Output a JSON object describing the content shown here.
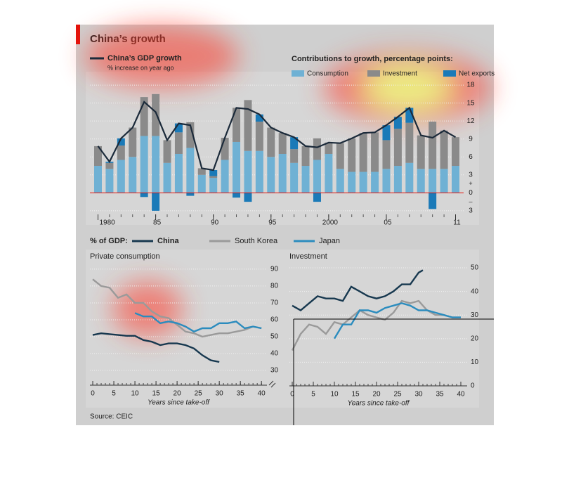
{
  "title": "China’s growth",
  "source": "Source: CEIC",
  "legend": {
    "title": "% of GDP:",
    "series": [
      {
        "name": "China",
        "color": "#17384f"
      },
      {
        "name": "South Korea",
        "color": "#9a9a9a"
      },
      {
        "name": "Japan",
        "color": "#2b8cbe"
      }
    ]
  },
  "chart_data": [
    {
      "type": "bar",
      "stacked": true,
      "legend_title": "Contributions to growth, percentage points:",
      "x": [
        1980,
        1981,
        1982,
        1983,
        1984,
        1985,
        1986,
        1987,
        1988,
        1989,
        1990,
        1991,
        1992,
        1993,
        1994,
        1995,
        1996,
        1997,
        1998,
        1999,
        2000,
        2001,
        2002,
        2003,
        2004,
        2005,
        2006,
        2007,
        2008,
        2009,
        2010,
        2011
      ],
      "xlim": [
        1979.3,
        2011.7
      ],
      "xticks": [
        1980,
        {
          "value": 1985,
          "label": "85"
        },
        {
          "value": 1990,
          "label": "90"
        },
        {
          "value": 1995,
          "label": "95"
        },
        2000,
        {
          "value": 2005,
          "label": "05"
        },
        {
          "value": 2011,
          "label": "11"
        }
      ],
      "ylim": [
        -3.6,
        19.3
      ],
      "yticks": [
        {
          "value": -3,
          "label": "3"
        },
        0,
        3,
        6,
        9,
        12,
        15,
        18
      ],
      "sign_labels": [
        "+",
        "–"
      ],
      "grid": true,
      "series": [
        {
          "name": "Consumption",
          "color": "#6fb1d4",
          "values": [
            4.5,
            4.0,
            5.5,
            6.0,
            9.5,
            9.5,
            5.0,
            6.5,
            7.5,
            3.0,
            2.5,
            5.5,
            8.5,
            7.0,
            7.0,
            6.0,
            6.5,
            5.0,
            4.5,
            5.5,
            6.5,
            4.0,
            3.5,
            3.5,
            3.5,
            4.0,
            4.5,
            5.0,
            4.0,
            4.0,
            4.0,
            4.5
          ]
        },
        {
          "name": "Investment",
          "color": "#8a8a8a",
          "values": [
            3.3,
            1.0,
            2.4,
            4.9,
            6.5,
            7.0,
            3.8,
            3.6,
            4.3,
            1.1,
            0.3,
            3.7,
            5.7,
            8.5,
            4.9,
            4.9,
            3.5,
            2.3,
            3.3,
            3.6,
            1.9,
            4.3,
            5.6,
            6.5,
            6.6,
            4.8,
            6.2,
            6.7,
            5.6,
            7.9,
            6.4,
            4.8
          ]
        },
        {
          "name": "Net exports",
          "color": "#1a7ab8",
          "values": [
            0,
            0.2,
            1.2,
            0,
            -0.7,
            -3.0,
            0,
            1.5,
            -0.5,
            0,
            1.0,
            0,
            -0.8,
            -1.5,
            1.2,
            0,
            0,
            2.0,
            0,
            -1.5,
            0,
            0,
            0,
            0,
            0,
            2.5,
            2.0,
            2.5,
            0,
            -2.7,
            0,
            0
          ]
        },
        {
          "name": "China’s GDP growth",
          "subtitle": "% increase on year ago",
          "type": "line",
          "color": "#1b2a3a",
          "values": [
            7.8,
            5.2,
            9.1,
            10.9,
            15.2,
            13.5,
            8.8,
            11.6,
            11.3,
            4.1,
            3.8,
            9.2,
            14.2,
            14.0,
            13.1,
            10.9,
            10.0,
            9.3,
            7.8,
            7.6,
            8.4,
            8.3,
            9.1,
            10.0,
            10.1,
            11.3,
            12.7,
            14.2,
            9.6,
            9.2,
            10.4,
            9.3
          ]
        }
      ]
    },
    {
      "type": "line",
      "title": "Private consumption",
      "xlabel": "Years since take-off",
      "xlim": [
        -0.67,
        41.3
      ],
      "xticks": [
        0,
        5,
        10,
        15,
        20,
        25,
        30,
        35,
        40
      ],
      "ylim": [
        21.25,
        93.3
      ],
      "yticks": [
        30,
        40,
        50,
        60,
        70,
        80,
        90
      ],
      "grid": true,
      "series": [
        {
          "x": [
            0,
            2,
            4,
            6,
            8,
            10,
            12,
            14,
            16,
            18,
            20,
            22,
            24,
            26,
            28,
            30
          ],
          "values": [
            51,
            52,
            51.5,
            51,
            50.5,
            50.5,
            48,
            47,
            45,
            46,
            46,
            45,
            43,
            39,
            36,
            35
          ]
        },
        {
          "x": [
            0,
            2,
            4,
            6,
            8,
            10,
            12,
            14,
            16,
            18,
            20,
            22,
            24,
            26,
            28,
            30,
            32,
            34,
            36,
            38,
            40
          ],
          "values": [
            84,
            80,
            79,
            73,
            75,
            70,
            70,
            65,
            62,
            61,
            57,
            53,
            52,
            50,
            51,
            52,
            52,
            53,
            54,
            56,
            55
          ]
        },
        {
          "x": [
            10,
            12,
            14,
            16,
            18,
            20,
            22,
            24,
            26,
            28,
            30,
            32,
            34,
            36,
            38,
            40
          ],
          "values": [
            64,
            62,
            62,
            58,
            59,
            58,
            56,
            53,
            55,
            55,
            58,
            58,
            59,
            55,
            56,
            55
          ]
        }
      ]
    },
    {
      "type": "line",
      "title": "Investment",
      "xlabel": "Years since take-off",
      "xlim": [
        -0.67,
        41.5
      ],
      "xticks": [
        0,
        5,
        10,
        15,
        20,
        25,
        30,
        35,
        40
      ],
      "ylim": [
        0,
        51.8
      ],
      "yticks": [
        0,
        10,
        20,
        30,
        40,
        50
      ],
      "grid": true,
      "series": [
        {
          "x": [
            0,
            2,
            4,
            6,
            8,
            10,
            12,
            14,
            16,
            18,
            20,
            22,
            24,
            26,
            28,
            30,
            31
          ],
          "values": [
            34,
            32,
            35,
            38,
            37,
            37,
            36,
            42,
            40,
            38,
            37,
            38,
            40,
            43,
            43,
            48,
            49
          ]
        },
        {
          "x": [
            0,
            2,
            4,
            6,
            8,
            10,
            12,
            14,
            16,
            18,
            20,
            22,
            24,
            26,
            28,
            30,
            32,
            34,
            36,
            38,
            40
          ],
          "values": [
            15,
            22,
            26,
            25,
            22,
            27,
            26,
            29,
            32,
            30,
            29,
            28,
            31,
            36,
            35,
            36,
            32,
            30,
            30,
            29,
            29
          ]
        },
        {
          "x": [
            10,
            12,
            14,
            16,
            18,
            20,
            22,
            24,
            26,
            28,
            30,
            32,
            34,
            36,
            38,
            40
          ],
          "values": [
            20,
            26,
            26,
            32,
            32,
            31,
            33,
            34,
            35,
            34,
            32,
            32,
            31,
            30,
            29,
            29
          ]
        }
      ]
    }
  ]
}
